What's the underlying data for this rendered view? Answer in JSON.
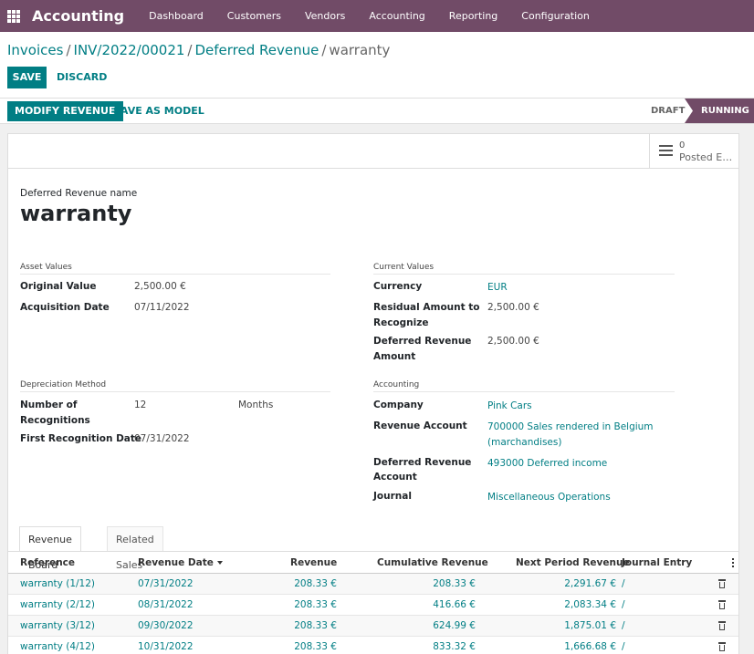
{
  "topbar": {
    "app_title": "Accounting",
    "menu": [
      "Dashboard",
      "Customers",
      "Vendors",
      "Accounting",
      "Reporting",
      "Configuration"
    ],
    "bg_color": "#714b67"
  },
  "breadcrumb": {
    "items": [
      "Invoices",
      "INV/2022/00021",
      "Deferred Revenue"
    ],
    "current": "warranty"
  },
  "actions": {
    "save": "SAVE",
    "discard": "DISCARD"
  },
  "header_buttons": {
    "modify": "MODIFY REVENUE",
    "save_model": "SAVE AS MODEL"
  },
  "status": {
    "draft": "DRAFT",
    "running": "RUNNING"
  },
  "stat_button": {
    "value": "0",
    "label": "Posted Entries",
    "icon": "bars-icon"
  },
  "form": {
    "name_label": "Deferred Revenue name",
    "name": "warranty",
    "asset_values": {
      "title": "Asset Values",
      "original_value_label": "Original Value",
      "original_value": "2,500.00 €",
      "acquisition_date_label": "Acquisition Date",
      "acquisition_date": "07/11/2022"
    },
    "current_values": {
      "title": "Current Values",
      "currency_label": "Currency",
      "currency": "EUR",
      "residual_label_1": "Residual Amount to",
      "residual_label_2": "Recognize",
      "residual": "2,500.00 €",
      "deferred_label_1": "Deferred Revenue",
      "deferred_label_2": "Amount",
      "deferred_amount": "2,500.00 €"
    },
    "depreciation": {
      "title": "Depreciation Method",
      "number_label_1": "Number of",
      "number_label_2": "Recognitions",
      "number": "12",
      "period": "Months",
      "first_date_label": "First Recognition Date",
      "first_date": "07/31/2022"
    },
    "accounting": {
      "title": "Accounting",
      "company_label": "Company",
      "company": "Pink Cars",
      "revenue_account_label": "Revenue Account",
      "revenue_account_1": "700000 Sales rendered in Belgium",
      "revenue_account_2": "(marchandises)",
      "deferred_account_label_1": "Deferred Revenue",
      "deferred_account_label_2": "Account",
      "deferred_account": "493000 Deferred income",
      "journal_label": "Journal",
      "journal": "Miscellaneous Operations"
    }
  },
  "tabs": [
    "Revenue Board",
    "Related Sales"
  ],
  "table": {
    "columns": [
      "Reference",
      "Revenue Date",
      "Revenue",
      "Cumulative Revenue",
      "Next Period Revenue",
      "Journal Entry"
    ],
    "rows": [
      [
        "warranty (1/12)",
        "07/31/2022",
        "208.33 €",
        "208.33 €",
        "2,291.67 €",
        "/"
      ],
      [
        "warranty (2/12)",
        "08/31/2022",
        "208.33 €",
        "416.66 €",
        "2,083.34 €",
        "/"
      ],
      [
        "warranty (3/12)",
        "09/30/2022",
        "208.33 €",
        "624.99 €",
        "1,875.01 €",
        "/"
      ],
      [
        "warranty (4/12)",
        "10/31/2022",
        "208.33 €",
        "833.32 €",
        "1,666.68 €",
        "/"
      ]
    ]
  }
}
